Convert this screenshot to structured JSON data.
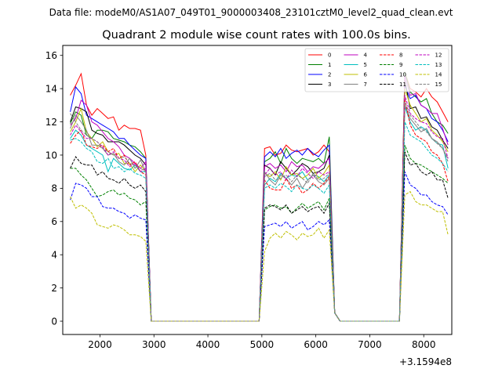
{
  "figure": {
    "suptitle": "Data file: modeM0/AS1A07_049T01_9000003408_23101cztM0_level2_quad_clean.evt"
  },
  "chart_data": {
    "type": "line",
    "title": "Quadrant 2 module wise count rates with 100.0s bins.",
    "xlabel": "",
    "ylabel": "",
    "x_offset_label": "+3.1594e8",
    "xlim": [
      1310,
      8520
    ],
    "ylim": [
      -0.8,
      16.6
    ],
    "xticks": [
      2000,
      3000,
      4000,
      5000,
      6000,
      7000,
      8000
    ],
    "yticks": [
      0,
      2,
      4,
      6,
      8,
      10,
      12,
      14,
      16
    ],
    "grid": false,
    "legend": {
      "placement": "top-right",
      "columns": 4
    },
    "x": [
      1450,
      1550,
      1650,
      1750,
      1850,
      1950,
      2050,
      2150,
      2250,
      2350,
      2450,
      2550,
      2650,
      2750,
      2850,
      2950,
      3050,
      3150,
      3250,
      3350,
      3450,
      3550,
      3650,
      3750,
      3850,
      3950,
      4050,
      4150,
      4250,
      4350,
      4450,
      4550,
      4650,
      4750,
      4850,
      4950,
      5050,
      5150,
      5250,
      5350,
      5450,
      5550,
      5650,
      5750,
      5850,
      5950,
      6050,
      6150,
      6250,
      6350,
      6450,
      6550,
      6650,
      6750,
      6850,
      6950,
      7050,
      7150,
      7250,
      7350,
      7450,
      7550,
      7650,
      7750,
      7850,
      7950,
      8050,
      8150,
      8250,
      8350,
      8450
    ],
    "series": [
      {
        "name": "0",
        "color": "#ff0000",
        "dashed": false,
        "values": [
          13.6,
          14.2,
          14.9,
          13.0,
          12.4,
          12.8,
          12.5,
          12.2,
          12.3,
          11.5,
          11.8,
          11.6,
          11.6,
          11.5,
          10.0,
          0,
          0,
          0,
          0,
          0,
          0,
          0,
          0,
          0,
          0,
          0,
          0,
          0,
          0,
          0,
          0,
          0,
          0,
          0,
          0,
          0,
          10.4,
          10.5,
          10.0,
          10.1,
          10.6,
          10.3,
          10.2,
          10.3,
          10.4,
          10.0,
          10.2,
          10.6,
          10.2,
          0.5,
          0,
          0,
          0,
          0,
          0,
          0,
          0,
          0,
          0,
          0,
          0,
          0,
          15.0,
          14.0,
          13.8,
          13.5,
          14.0,
          13.5,
          13.2,
          12.6,
          12.0
        ]
      },
      {
        "name": "1",
        "color": "#008000",
        "dashed": false,
        "values": [
          11.9,
          12.6,
          12.4,
          11.2,
          11.0,
          11.5,
          11.5,
          11.4,
          11.0,
          10.9,
          10.8,
          10.6,
          10.5,
          10.2,
          9.8,
          0,
          0,
          0,
          0,
          0,
          0,
          0,
          0,
          0,
          0,
          0,
          0,
          0,
          0,
          0,
          0,
          0,
          0,
          0,
          0,
          0,
          9.6,
          9.8,
          10.2,
          9.5,
          10.4,
          9.8,
          9.5,
          9.8,
          9.7,
          9.6,
          9.8,
          9.5,
          11.1,
          0.5,
          0,
          0,
          0,
          0,
          0,
          0,
          0,
          0,
          0,
          0,
          0,
          0,
          15.0,
          13.8,
          13.5,
          13.2,
          13.4,
          12.5,
          12.0,
          11.8,
          11.3
        ]
      },
      {
        "name": "2",
        "color": "#0000ff",
        "dashed": false,
        "values": [
          12.6,
          14.1,
          13.7,
          12.4,
          12.2,
          12.0,
          11.8,
          11.6,
          11.4,
          11.0,
          11.0,
          10.6,
          10.3,
          10.0,
          9.8,
          0,
          0,
          0,
          0,
          0,
          0,
          0,
          0,
          0,
          0,
          0,
          0,
          0,
          0,
          0,
          0,
          0,
          0,
          0,
          0,
          0,
          9.9,
          10.2,
          9.9,
          10.4,
          9.8,
          10.1,
          10.3,
          10.0,
          10.4,
          10.1,
          9.9,
          10.3,
          10.6,
          0.5,
          0,
          0,
          0,
          0,
          0,
          0,
          0,
          0,
          0,
          0,
          0,
          0,
          14.2,
          13.4,
          13.6,
          13.0,
          12.8,
          12.2,
          12.0,
          11.5,
          10.8
        ]
      },
      {
        "name": "3",
        "color": "#000000",
        "dashed": false,
        "values": [
          12.0,
          12.9,
          12.8,
          12.6,
          11.5,
          11.3,
          11.2,
          10.8,
          10.8,
          10.8,
          10.6,
          10.3,
          10.0,
          9.8,
          9.4,
          0,
          0,
          0,
          0,
          0,
          0,
          0,
          0,
          0,
          0,
          0,
          0,
          0,
          0,
          0,
          0,
          0,
          0,
          0,
          0,
          0,
          9.4,
          9.2,
          8.8,
          9.6,
          9.2,
          8.8,
          9.1,
          9.5,
          9.3,
          8.9,
          9.0,
          9.2,
          10.0,
          0.5,
          0,
          0,
          0,
          0,
          0,
          0,
          0,
          0,
          0,
          0,
          0,
          0,
          14.5,
          12.8,
          12.9,
          12.2,
          12.3,
          11.7,
          11.5,
          10.9,
          10.4
        ]
      },
      {
        "name": "4",
        "color": "#bf00bf",
        "dashed": false,
        "values": [
          11.8,
          12.2,
          13.3,
          13.0,
          12.0,
          11.8,
          11.4,
          11.0,
          10.8,
          10.5,
          10.0,
          9.8,
          9.5,
          9.2,
          9.6,
          0,
          0,
          0,
          0,
          0,
          0,
          0,
          0,
          0,
          0,
          0,
          0,
          0,
          0,
          0,
          0,
          0,
          0,
          0,
          0,
          0,
          9.3,
          9.5,
          9.2,
          9.4,
          9.0,
          9.6,
          9.3,
          9.4,
          9.0,
          9.3,
          9.2,
          9.5,
          9.8,
          0.5,
          0,
          0,
          0,
          0,
          0,
          0,
          0,
          0,
          0,
          0,
          0,
          0,
          14.8,
          13.6,
          13.7,
          13.0,
          12.8,
          12.5,
          12.5,
          11.6,
          10.6
        ]
      },
      {
        "name": "5",
        "color": "#00bfbf",
        "dashed": false,
        "values": [
          11.0,
          11.5,
          11.2,
          10.6,
          10.4,
          10.2,
          10.0,
          9.0,
          9.8,
          9.5,
          9.2,
          9.1,
          9.4,
          9.0,
          9.0,
          0,
          0,
          0,
          0,
          0,
          0,
          0,
          0,
          0,
          0,
          0,
          0,
          0,
          0,
          0,
          0,
          0,
          0,
          0,
          0,
          0,
          8.2,
          8.6,
          8.4,
          8.9,
          8.6,
          8.8,
          8.7,
          9.0,
          8.5,
          8.8,
          8.7,
          8.4,
          8.8,
          0.5,
          0,
          0,
          0,
          0,
          0,
          0,
          0,
          0,
          0,
          0,
          0,
          0,
          12.9,
          12.0,
          11.5,
          11.7,
          11.5,
          11.0,
          10.7,
          10.6,
          9.2
        ]
      },
      {
        "name": "6",
        "color": "#bfbf00",
        "dashed": false,
        "values": [
          11.4,
          12.0,
          12.8,
          11.4,
          11.0,
          10.5,
          10.8,
          10.2,
          10.0,
          10.1,
          9.5,
          9.5,
          9.0,
          9.4,
          9.0,
          0,
          0,
          0,
          0,
          0,
          0,
          0,
          0,
          0,
          0,
          0,
          0,
          0,
          0,
          0,
          0,
          0,
          0,
          0,
          0,
          0,
          8.9,
          8.7,
          9.0,
          8.5,
          9.3,
          8.8,
          8.9,
          8.6,
          8.8,
          9.2,
          8.6,
          8.9,
          9.4,
          0.5,
          0,
          0,
          0,
          0,
          0,
          0,
          0,
          0,
          0,
          0,
          0,
          0,
          14.0,
          13.0,
          12.5,
          12.0,
          12.2,
          11.5,
          11.2,
          10.8,
          10.2
        ]
      },
      {
        "name": "7",
        "color": "#808080",
        "dashed": false,
        "values": [
          11.6,
          12.4,
          12.0,
          11.5,
          10.6,
          10.6,
          10.4,
          10.0,
          10.1,
          9.6,
          9.4,
          9.8,
          9.2,
          9.7,
          9.0,
          0,
          0,
          0,
          0,
          0,
          0,
          0,
          0,
          0,
          0,
          0,
          0,
          0,
          0,
          0,
          0,
          0,
          0,
          0,
          0,
          0,
          9.0,
          8.5,
          8.2,
          8.8,
          8.6,
          8.2,
          8.6,
          8.0,
          8.5,
          8.8,
          8.4,
          8.2,
          8.6,
          0.5,
          0,
          0,
          0,
          0,
          0,
          0,
          0,
          0,
          0,
          0,
          0,
          0,
          13.0,
          12.2,
          11.8,
          11.4,
          11.6,
          11.0,
          10.8,
          10.4,
          9.8
        ]
      },
      {
        "name": "8",
        "color": "#ff0000",
        "dashed": true,
        "values": [
          10.7,
          11.2,
          11.5,
          10.6,
          10.5,
          10.4,
          10.6,
          10.2,
          10.4,
          9.8,
          10.0,
          9.4,
          9.6,
          9.0,
          8.8,
          0,
          0,
          0,
          0,
          0,
          0,
          0,
          0,
          0,
          0,
          0,
          0,
          0,
          0,
          0,
          0,
          0,
          0,
          0,
          0,
          0,
          8.5,
          8.0,
          7.9,
          7.9,
          8.6,
          8.0,
          8.2,
          7.7,
          7.9,
          8.3,
          8.0,
          8.3,
          8.7,
          0.5,
          0,
          0,
          0,
          0,
          0,
          0,
          0,
          0,
          0,
          0,
          0,
          0,
          13.4,
          11.8,
          11.2,
          11.0,
          10.8,
          10.2,
          10.0,
          9.5,
          8.4
        ]
      },
      {
        "name": "9",
        "color": "#008000",
        "dashed": true,
        "values": [
          9.2,
          9.2,
          8.8,
          8.5,
          8.0,
          7.5,
          7.6,
          7.8,
          7.9,
          7.6,
          7.7,
          7.4,
          7.3,
          7.0,
          7.2,
          0,
          0,
          0,
          0,
          0,
          0,
          0,
          0,
          0,
          0,
          0,
          0,
          0,
          0,
          0,
          0,
          0,
          0,
          0,
          0,
          0,
          6.7,
          6.9,
          7.0,
          6.8,
          6.9,
          6.5,
          6.8,
          7.1,
          6.8,
          7.0,
          7.2,
          6.7,
          7.4,
          0.5,
          0,
          0,
          0,
          0,
          0,
          0,
          0,
          0,
          0,
          0,
          0,
          0,
          10.6,
          9.8,
          9.5,
          9.4,
          9.2,
          9.0,
          8.8,
          8.6,
          8.3
        ]
      },
      {
        "name": "10",
        "color": "#0000ff",
        "dashed": true,
        "values": [
          7.3,
          8.3,
          8.2,
          8.0,
          7.5,
          7.5,
          6.9,
          6.8,
          6.8,
          6.6,
          6.5,
          6.2,
          6.4,
          6.2,
          6.1,
          0,
          0,
          0,
          0,
          0,
          0,
          0,
          0,
          0,
          0,
          0,
          0,
          0,
          0,
          0,
          0,
          0,
          0,
          0,
          0,
          0,
          5.7,
          5.8,
          5.9,
          5.7,
          6.0,
          5.6,
          5.8,
          6.0,
          5.5,
          5.7,
          6.0,
          5.8,
          6.1,
          0.5,
          0,
          0,
          0,
          0,
          0,
          0,
          0,
          0,
          0,
          0,
          0,
          0,
          9.0,
          8.2,
          8.0,
          7.6,
          7.6,
          7.2,
          7.0,
          6.9,
          6.4
        ]
      },
      {
        "name": "11",
        "color": "#000000",
        "dashed": true,
        "values": [
          9.2,
          9.9,
          9.5,
          9.4,
          9.4,
          8.8,
          9.0,
          8.6,
          8.5,
          8.3,
          8.6,
          8.2,
          8.0,
          8.2,
          7.8,
          0,
          0,
          0,
          0,
          0,
          0,
          0,
          0,
          0,
          0,
          0,
          0,
          0,
          0,
          0,
          0,
          0,
          0,
          0,
          0,
          0,
          6.8,
          7.0,
          6.9,
          6.7,
          7.0,
          6.5,
          6.7,
          6.9,
          6.6,
          6.8,
          6.9,
          6.5,
          7.1,
          0.5,
          0,
          0,
          0,
          0,
          0,
          0,
          0,
          0,
          0,
          0,
          0,
          0,
          10.2,
          9.4,
          9.5,
          9.0,
          8.8,
          9.0,
          8.5,
          8.5,
          7.4
        ]
      },
      {
        "name": "12",
        "color": "#bf00bf",
        "dashed": true,
        "values": [
          11.2,
          11.8,
          11.4,
          11.0,
          11.0,
          10.8,
          10.5,
          10.0,
          10.2,
          9.8,
          9.7,
          9.3,
          9.5,
          9.0,
          9.2,
          0,
          0,
          0,
          0,
          0,
          0,
          0,
          0,
          0,
          0,
          0,
          0,
          0,
          0,
          0,
          0,
          0,
          0,
          0,
          0,
          0,
          8.8,
          9.2,
          8.8,
          9.0,
          8.5,
          9.1,
          8.7,
          9.2,
          8.9,
          8.6,
          9.0,
          8.8,
          9.0,
          0.5,
          0,
          0,
          0,
          0,
          0,
          0,
          0,
          0,
          0,
          0,
          0,
          0,
          13.6,
          12.5,
          12.2,
          12.0,
          11.9,
          11.4,
          11.1,
          11.0,
          9.8
        ]
      },
      {
        "name": "13",
        "color": "#00bfbf",
        "dashed": true,
        "values": [
          10.9,
          11.0,
          10.8,
          10.4,
          10.2,
          9.6,
          9.5,
          9.8,
          9.2,
          9.3,
          9.0,
          9.2,
          8.9,
          8.8,
          8.6,
          0,
          0,
          0,
          0,
          0,
          0,
          0,
          0,
          0,
          0,
          0,
          0,
          0,
          0,
          0,
          0,
          0,
          0,
          0,
          0,
          0,
          8.0,
          8.2,
          8.0,
          8.3,
          8.1,
          7.8,
          8.2,
          8.0,
          7.9,
          8.2,
          8.0,
          7.7,
          8.2,
          0.5,
          0,
          0,
          0,
          0,
          0,
          0,
          0,
          0,
          0,
          0,
          0,
          0,
          12.0,
          11.2,
          11.0,
          10.8,
          10.4,
          10.0,
          9.8,
          9.5,
          9.0
        ]
      },
      {
        "name": "14",
        "color": "#bfbf00",
        "dashed": true,
        "values": [
          7.5,
          6.8,
          7.0,
          6.8,
          6.5,
          5.8,
          5.7,
          5.6,
          5.8,
          5.7,
          5.5,
          5.2,
          5.2,
          5.1,
          4.8,
          0,
          0,
          0,
          0,
          0,
          0,
          0,
          0,
          0,
          0,
          0,
          0,
          0,
          0,
          0,
          0,
          0,
          0,
          0,
          0,
          0,
          4.2,
          5.0,
          5.3,
          5.0,
          5.4,
          5.2,
          4.9,
          5.3,
          5.1,
          5.2,
          5.6,
          5.0,
          5.5,
          0.5,
          0,
          0,
          0,
          0,
          0,
          0,
          0,
          0,
          0,
          0,
          0,
          0,
          7.6,
          7.8,
          7.2,
          7.0,
          7.0,
          6.8,
          6.6,
          6.6,
          5.2
        ]
      },
      {
        "name": "15",
        "color": "#808080",
        "dashed": true,
        "values": [
          12.5,
          12.0,
          11.5,
          11.2,
          11.0,
          10.8,
          10.4,
          10.2,
          10.0,
          9.8,
          9.9,
          9.5,
          9.4,
          9.2,
          9.0,
          0,
          0,
          0,
          0,
          0,
          0,
          0,
          0,
          0,
          0,
          0,
          0,
          0,
          0,
          0,
          0,
          0,
          0,
          0,
          0,
          0,
          8.7,
          8.9,
          8.5,
          8.6,
          8.8,
          8.4,
          8.8,
          8.6,
          8.3,
          8.9,
          8.5,
          8.6,
          8.9,
          0.5,
          0,
          0,
          0,
          0,
          0,
          0,
          0,
          0,
          0,
          0,
          0,
          0,
          13.2,
          12.4,
          12.0,
          11.6,
          11.4,
          11.0,
          10.7,
          10.4,
          9.6
        ]
      }
    ]
  }
}
